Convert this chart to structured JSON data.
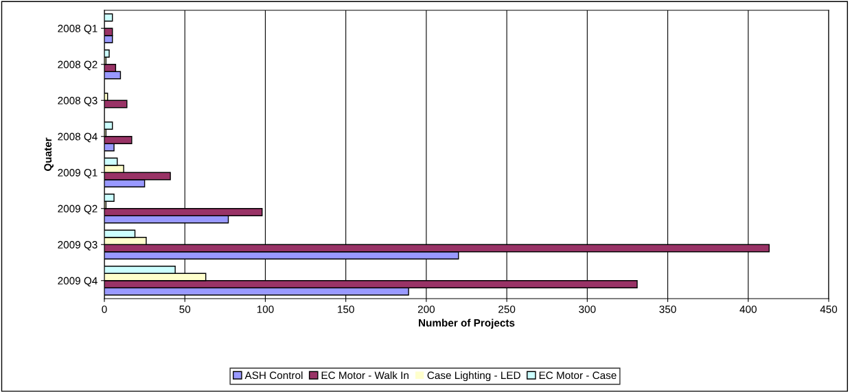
{
  "chart_data": {
    "type": "bar",
    "orientation": "horizontal",
    "xlabel": "Number of Projects",
    "ylabel": "Quater",
    "categories": [
      "2008 Q1",
      "2008 Q2",
      "2008 Q3",
      "2008 Q4",
      "2009 Q1",
      "2009 Q2",
      "2009 Q3",
      "2009 Q4"
    ],
    "series": [
      {
        "name": "ASH Control",
        "color": "#9999ff",
        "values": [
          5,
          10,
          0,
          6,
          25,
          77,
          220,
          189
        ]
      },
      {
        "name": "EC Motor - Walk In",
        "color": "#993366",
        "values": [
          5,
          7,
          14,
          17,
          41,
          98,
          413,
          331
        ]
      },
      {
        "name": "Case Lighting - LED",
        "color": "#ffffcc",
        "values": [
          0,
          1,
          2,
          1,
          12,
          1,
          26,
          63
        ]
      },
      {
        "name": "EC Motor - Case",
        "color": "#ccffff",
        "values": [
          5,
          3,
          0,
          5,
          8,
          6,
          19,
          44
        ]
      }
    ],
    "xlim": [
      0,
      450
    ],
    "xticks": [
      0,
      50,
      100,
      150,
      200,
      250,
      300,
      350,
      400,
      450
    ],
    "grid": "x",
    "legend": "bottom"
  }
}
